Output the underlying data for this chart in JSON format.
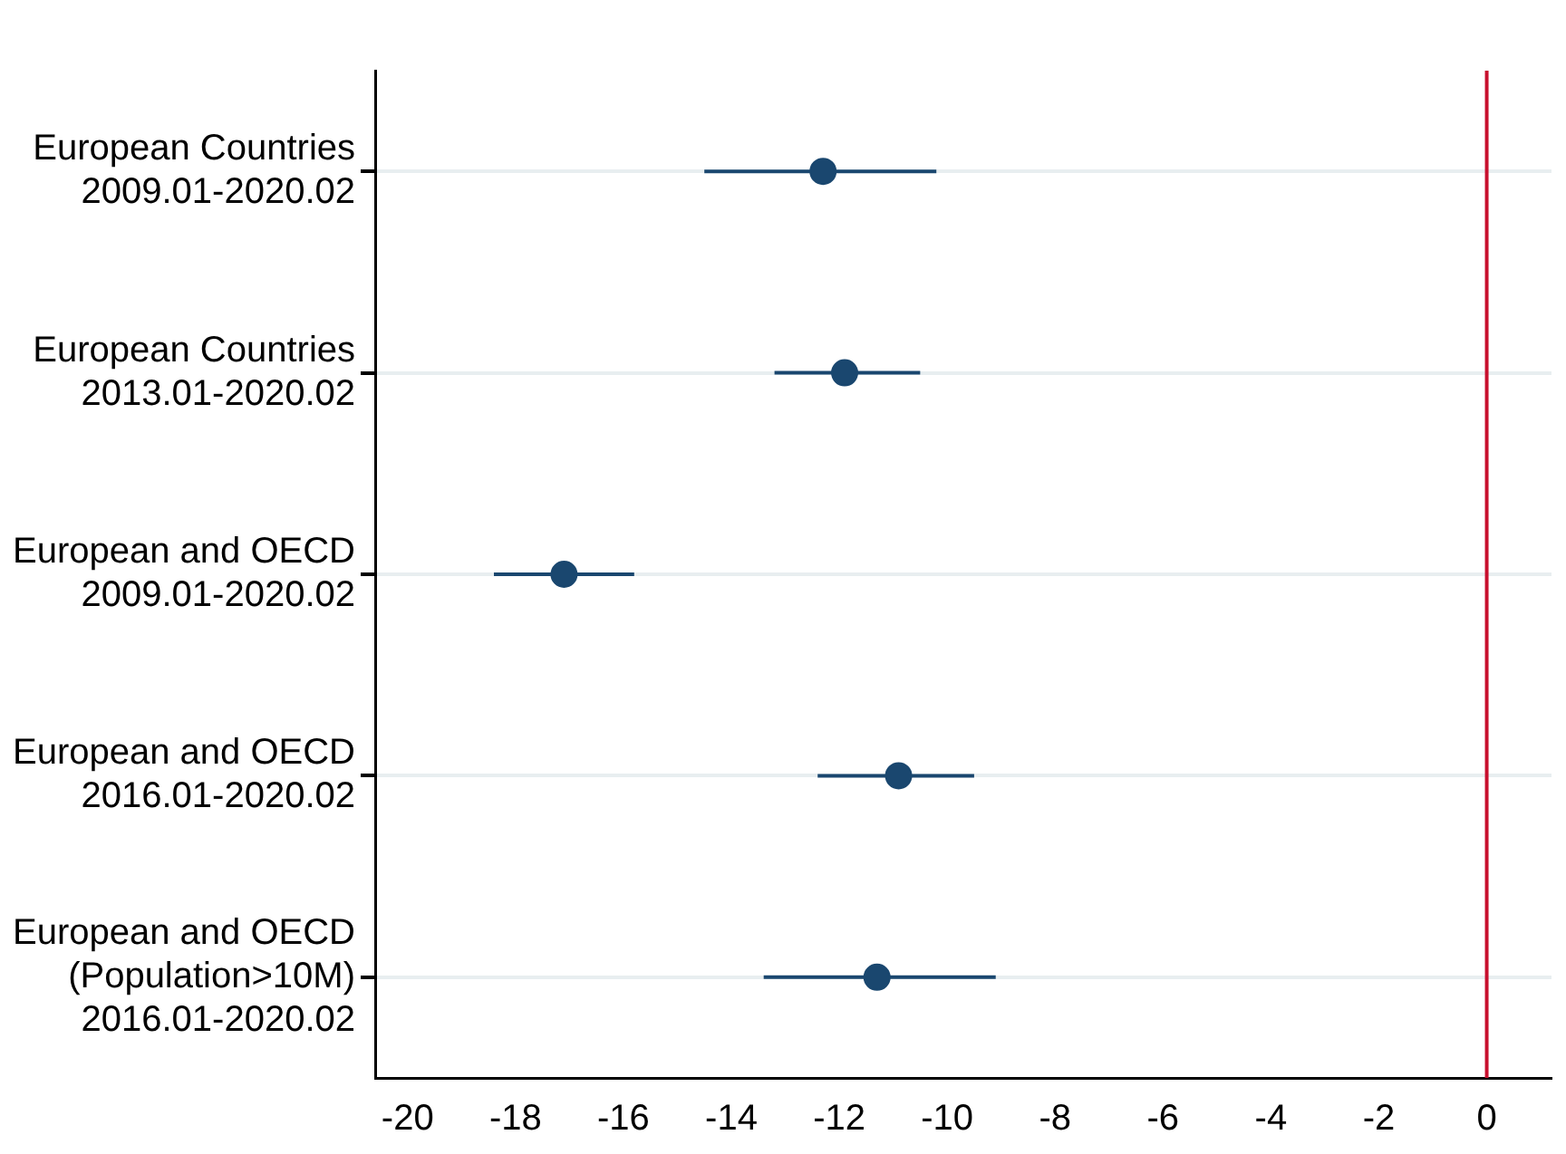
{
  "chart_data": {
    "type": "scatter",
    "orientation": "horizontal",
    "categories": [
      "European Countries\n2009.01-2020.02",
      "European Countries\n2013.01-2020.02",
      "European and OECD\n2009.01-2020.02",
      "European and OECD\n2016.01-2020.02",
      "European and OECD\n(Population>10M)\n2016.01-2020.02"
    ],
    "values": [
      -12.3,
      -11.9,
      -17.1,
      -10.9,
      -11.3
    ],
    "errors": [
      [
        -14.5,
        -10.2
      ],
      [
        -13.2,
        -10.5
      ],
      [
        -18.4,
        -15.8
      ],
      [
        -12.4,
        -9.5
      ],
      [
        -13.4,
        -9.1
      ]
    ],
    "color": "#1a476f",
    "marker": "circle",
    "grid": "y",
    "xlim": [
      -20.6,
      1.2
    ],
    "xticks": [
      -20,
      -18,
      -16,
      -14,
      -12,
      -10,
      -8,
      -6,
      -4,
      -2,
      0
    ],
    "ref_lines": [
      {
        "axis": "x",
        "value": 0,
        "color": "#c8102e"
      }
    ]
  }
}
